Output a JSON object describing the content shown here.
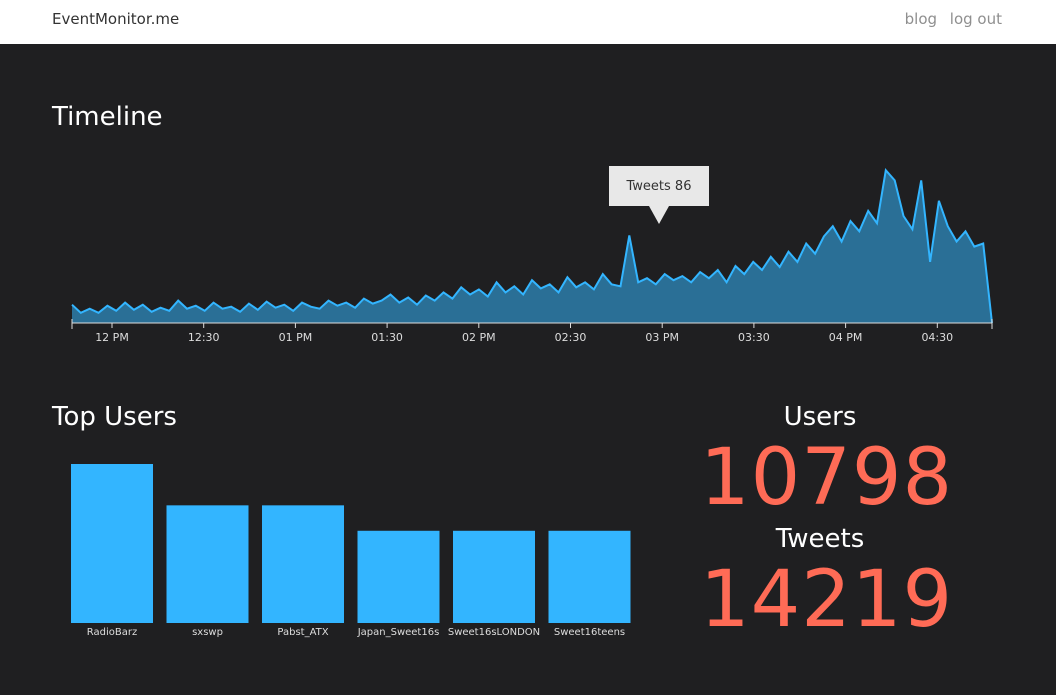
{
  "navbar": {
    "brand": "EventMonitor.me",
    "links": [
      "blog",
      "log out"
    ]
  },
  "timeline": {
    "title": "Timeline",
    "tooltip": "Tweets 86"
  },
  "top_users": {
    "title": "Top Users"
  },
  "stats": {
    "users_label": "Users",
    "users_value": "10798",
    "tweets_label": "Tweets",
    "tweets_value": "14219"
  },
  "colors": {
    "background": "#1f1f21",
    "area_fill": "#2a6f96",
    "area_line": "#33b5ff",
    "bar": "#33b5ff",
    "stat_value": "#ff6b56"
  },
  "chart_data": [
    {
      "type": "area",
      "x_ticks": [
        "12 PM",
        "12:30",
        "01 PM",
        "01:30",
        "02 PM",
        "02:30",
        "03 PM",
        "03:30",
        "04 PM",
        "04:30"
      ],
      "y_max": 100,
      "highlight": {
        "label": "Tweets",
        "value": 86,
        "tick_position": "03 PM"
      },
      "values": [
        18,
        10,
        14,
        10,
        17,
        12,
        20,
        13,
        18,
        11,
        15,
        12,
        22,
        14,
        17,
        12,
        20,
        14,
        16,
        11,
        19,
        13,
        21,
        15,
        18,
        12,
        20,
        16,
        14,
        22,
        17,
        20,
        15,
        24,
        19,
        22,
        28,
        20,
        25,
        18,
        27,
        22,
        30,
        24,
        35,
        28,
        33,
        26,
        40,
        30,
        36,
        28,
        42,
        34,
        38,
        30,
        45,
        35,
        40,
        33,
        48,
        38,
        36,
        86,
        40,
        44,
        38,
        48,
        42,
        46,
        40,
        50,
        44,
        52,
        40,
        56,
        48,
        60,
        52,
        65,
        55,
        70,
        60,
        78,
        68,
        85,
        95,
        80,
        100,
        90,
        110,
        98,
        150,
        140,
        105,
        92,
        140,
        60,
        120,
        95,
        80,
        90,
        75,
        78,
        0
      ]
    },
    {
      "type": "bar",
      "categories": [
        "RadioBarz",
        "sxswp",
        "Pabst_ATX",
        "Japan_Sweet16s",
        "Sweet16sLONDON",
        "Sweet16teens"
      ],
      "values": [
        100,
        74,
        74,
        58,
        58,
        58
      ]
    }
  ]
}
